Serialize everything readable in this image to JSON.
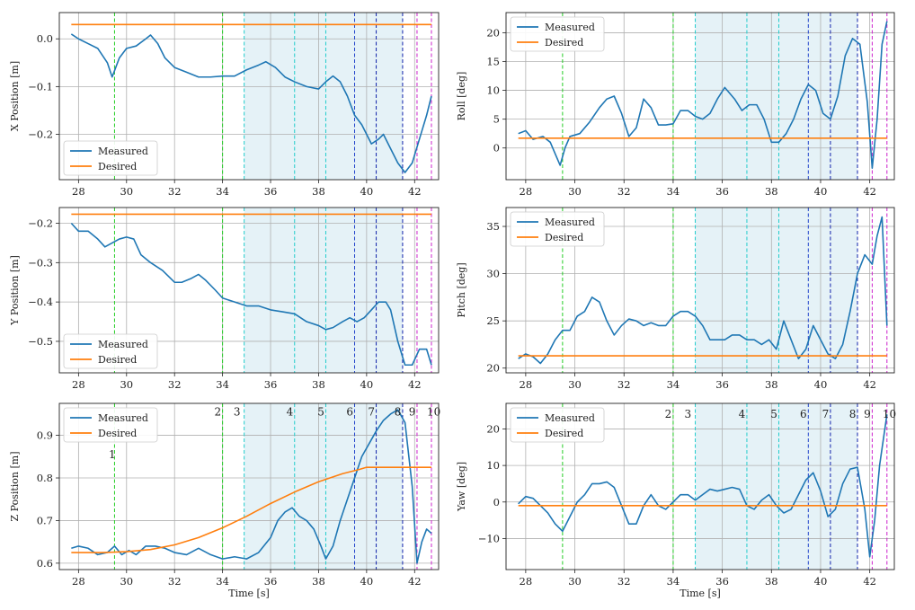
{
  "style": {
    "measured_color": "#1f77b4",
    "desired_color": "#ff7f0e",
    "shade_color": "#add8e6",
    "grid_color": "#b0b0b0"
  },
  "vlines": [
    {
      "x": 29.5,
      "color": "#22cc22"
    },
    {
      "x": 34.0,
      "color": "#22cc22"
    },
    {
      "x": 34.9,
      "color": "#22cccc"
    },
    {
      "x": 37.0,
      "color": "#22cccc"
    },
    {
      "x": 38.3,
      "color": "#22cccc"
    },
    {
      "x": 39.5,
      "color": "#2244cc"
    },
    {
      "x": 40.4,
      "color": "#1122aa"
    },
    {
      "x": 41.5,
      "color": "#1122aa"
    },
    {
      "x": 42.1,
      "color": "#cc22cc"
    },
    {
      "x": 42.7,
      "color": "#cc22cc"
    }
  ],
  "shade_range": [
    34.9,
    41.5
  ],
  "chart_data": [
    {
      "id": "x-position",
      "type": "line",
      "ylabel": "X Position [m]",
      "xlabel": "",
      "xlim": [
        27.2,
        43.0
      ],
      "ylim": [
        -0.295,
        0.055
      ],
      "xticks": [
        28,
        30,
        32,
        34,
        36,
        38,
        40,
        42
      ],
      "yticks": [
        -0.2,
        -0.1,
        0.0
      ],
      "ytick_labels": [
        "−0.2",
        "−0.1",
        "0.0"
      ],
      "legend": {
        "position": "lower-left",
        "entries": [
          "Measured",
          "Desired"
        ]
      },
      "series": [
        {
          "name": "Measured",
          "x": [
            27.7,
            28.0,
            28.4,
            28.8,
            29.2,
            29.4,
            29.7,
            30.0,
            30.4,
            30.8,
            31.0,
            31.3,
            31.6,
            32.0,
            32.5,
            33.0,
            33.5,
            34.0,
            34.5,
            35.0,
            35.5,
            35.8,
            36.2,
            36.6,
            37.0,
            37.5,
            38.0,
            38.3,
            38.6,
            38.9,
            39.2,
            39.5,
            39.8,
            40.2,
            40.5,
            40.7,
            41.0,
            41.3,
            41.6,
            41.9,
            42.2,
            42.5,
            42.7
          ],
          "y": [
            0.01,
            0.0,
            -0.01,
            -0.02,
            -0.05,
            -0.08,
            -0.04,
            -0.02,
            -0.015,
            0.0,
            0.008,
            -0.01,
            -0.04,
            -0.06,
            -0.07,
            -0.08,
            -0.08,
            -0.078,
            -0.078,
            -0.065,
            -0.055,
            -0.048,
            -0.06,
            -0.08,
            -0.09,
            -0.1,
            -0.105,
            -0.09,
            -0.078,
            -0.09,
            -0.12,
            -0.16,
            -0.18,
            -0.22,
            -0.21,
            -0.2,
            -0.23,
            -0.26,
            -0.28,
            -0.26,
            -0.21,
            -0.16,
            -0.12
          ]
        },
        {
          "name": "Desired",
          "x": [
            27.7,
            42.7
          ],
          "y": [
            0.03,
            0.03
          ]
        }
      ]
    },
    {
      "id": "roll",
      "type": "line",
      "ylabel": "Roll [deg]",
      "xlabel": "",
      "xlim": [
        27.2,
        43.0
      ],
      "ylim": [
        -5.5,
        23.5
      ],
      "xticks": [
        28,
        30,
        32,
        34,
        36,
        38,
        40,
        42
      ],
      "yticks": [
        0,
        5,
        10,
        15,
        20
      ],
      "ytick_labels": [
        "0",
        "5",
        "10",
        "15",
        "20"
      ],
      "legend": {
        "position": "upper-left",
        "entries": [
          "Measured",
          "Desired"
        ]
      },
      "series": [
        {
          "name": "Measured",
          "x": [
            27.7,
            28.0,
            28.3,
            28.7,
            29.0,
            29.2,
            29.4,
            29.6,
            29.8,
            30.2,
            30.6,
            31.0,
            31.3,
            31.6,
            31.9,
            32.2,
            32.5,
            32.8,
            33.1,
            33.4,
            33.7,
            34.0,
            34.3,
            34.6,
            34.9,
            35.2,
            35.5,
            35.8,
            36.1,
            36.5,
            36.8,
            37.1,
            37.4,
            37.7,
            38.0,
            38.3,
            38.6,
            38.9,
            39.2,
            39.5,
            39.8,
            40.1,
            40.4,
            40.7,
            41.0,
            41.3,
            41.6,
            41.9,
            42.1,
            42.3,
            42.5,
            42.7
          ],
          "y": [
            2.5,
            3.0,
            1.5,
            2.0,
            1.0,
            -1.0,
            -3.0,
            0.0,
            2.0,
            2.5,
            4.5,
            7.0,
            8.5,
            9.0,
            6.0,
            2.0,
            3.5,
            8.5,
            7.0,
            4.0,
            4.0,
            4.2,
            6.5,
            6.5,
            5.5,
            5.0,
            6.0,
            8.5,
            10.5,
            8.5,
            6.5,
            7.5,
            7.5,
            5.0,
            1.0,
            1.0,
            2.5,
            5.0,
            8.5,
            11.0,
            10.0,
            6.0,
            5.0,
            9.0,
            16.0,
            19.0,
            18.0,
            8.0,
            -3.5,
            5.0,
            18.0,
            22.0
          ]
        },
        {
          "name": "Desired",
          "x": [
            27.7,
            42.7
          ],
          "y": [
            1.7,
            1.7
          ]
        }
      ]
    },
    {
      "id": "y-position",
      "type": "line",
      "ylabel": "Y Position [m]",
      "xlabel": "",
      "xlim": [
        27.2,
        43.0
      ],
      "ylim": [
        -0.58,
        -0.16
      ],
      "xticks": [
        28,
        30,
        32,
        34,
        36,
        38,
        40,
        42
      ],
      "yticks": [
        -0.5,
        -0.4,
        -0.3,
        -0.2
      ],
      "ytick_labels": [
        "−0.5",
        "−0.4",
        "−0.3",
        "−0.2"
      ],
      "legend": {
        "position": "lower-left",
        "entries": [
          "Measured",
          "Desired"
        ]
      },
      "series": [
        {
          "name": "Measured",
          "x": [
            27.7,
            28.0,
            28.4,
            28.8,
            29.1,
            29.4,
            29.7,
            30.0,
            30.3,
            30.6,
            31.0,
            31.5,
            32.0,
            32.3,
            32.7,
            33.0,
            33.3,
            33.7,
            34.0,
            34.5,
            35.0,
            35.5,
            36.0,
            36.5,
            37.0,
            37.5,
            38.0,
            38.3,
            38.6,
            39.0,
            39.3,
            39.6,
            39.9,
            40.2,
            40.5,
            40.8,
            41.0,
            41.3,
            41.6,
            41.9,
            42.2,
            42.5,
            42.7
          ],
          "y": [
            -0.2,
            -0.22,
            -0.22,
            -0.24,
            -0.26,
            -0.25,
            -0.24,
            -0.235,
            -0.24,
            -0.28,
            -0.3,
            -0.32,
            -0.35,
            -0.35,
            -0.34,
            -0.33,
            -0.345,
            -0.37,
            -0.39,
            -0.4,
            -0.41,
            -0.41,
            -0.42,
            -0.425,
            -0.43,
            -0.45,
            -0.46,
            -0.47,
            -0.465,
            -0.45,
            -0.44,
            -0.45,
            -0.44,
            -0.42,
            -0.4,
            -0.4,
            -0.42,
            -0.5,
            -0.56,
            -0.56,
            -0.52,
            -0.52,
            -0.56
          ]
        },
        {
          "name": "Desired",
          "x": [
            27.7,
            42.7
          ],
          "y": [
            -0.177,
            -0.177
          ]
        }
      ]
    },
    {
      "id": "pitch",
      "type": "line",
      "ylabel": "Pitch [deg]",
      "xlabel": "",
      "xlim": [
        27.2,
        43.0
      ],
      "ylim": [
        19.5,
        37.0
      ],
      "xticks": [
        28,
        30,
        32,
        34,
        36,
        38,
        40,
        42
      ],
      "yticks": [
        20,
        25,
        30,
        35
      ],
      "ytick_labels": [
        "20",
        "25",
        "30",
        "35"
      ],
      "legend": {
        "position": "upper-left",
        "entries": [
          "Measured",
          "Desired"
        ]
      },
      "series": [
        {
          "name": "Measured",
          "x": [
            27.7,
            28.0,
            28.3,
            28.6,
            28.9,
            29.2,
            29.5,
            29.8,
            30.1,
            30.4,
            30.7,
            31.0,
            31.3,
            31.6,
            31.9,
            32.2,
            32.5,
            32.8,
            33.1,
            33.4,
            33.7,
            34.0,
            34.3,
            34.6,
            34.9,
            35.2,
            35.5,
            35.8,
            36.1,
            36.4,
            36.7,
            37.0,
            37.3,
            37.6,
            37.9,
            38.2,
            38.5,
            38.8,
            39.1,
            39.4,
            39.7,
            40.0,
            40.3,
            40.6,
            40.9,
            41.2,
            41.5,
            41.8,
            42.1,
            42.3,
            42.5,
            42.7
          ],
          "y": [
            21.0,
            21.5,
            21.2,
            20.5,
            21.5,
            23.0,
            24.0,
            24.0,
            25.5,
            26.0,
            27.5,
            27.0,
            25.0,
            23.5,
            24.5,
            25.2,
            25.0,
            24.5,
            24.8,
            24.5,
            24.5,
            25.5,
            26.0,
            26.0,
            25.5,
            24.5,
            23.0,
            23.0,
            23.0,
            23.5,
            23.5,
            23.0,
            23.0,
            22.5,
            23.0,
            22.0,
            25.0,
            23.0,
            21.0,
            22.0,
            24.5,
            23.0,
            21.5,
            21.0,
            22.5,
            26.0,
            30.0,
            32.0,
            31.0,
            34.0,
            36.0,
            24.5
          ]
        },
        {
          "name": "Desired",
          "x": [
            27.7,
            42.7
          ],
          "y": [
            21.3,
            21.3
          ]
        }
      ]
    },
    {
      "id": "z-position",
      "type": "line",
      "ylabel": "Z Position [m]",
      "xlabel": "Time [s]",
      "xlim": [
        27.2,
        43.0
      ],
      "ylim": [
        0.585,
        0.975
      ],
      "xticks": [
        28,
        30,
        32,
        34,
        36,
        38,
        40,
        42
      ],
      "yticks": [
        0.6,
        0.7,
        0.8,
        0.9
      ],
      "ytick_labels": [
        "0.6",
        "0.7",
        "0.8",
        "0.9"
      ],
      "legend": {
        "position": "upper-left",
        "entries": [
          "Measured",
          "Desired"
        ]
      },
      "annotations": [
        {
          "label": "1",
          "x": 29.4,
          "y": 0.855
        },
        {
          "label": "2",
          "x": 33.8,
          "y": 0.955
        },
        {
          "label": "3",
          "x": 34.6,
          "y": 0.955
        },
        {
          "label": "4",
          "x": 36.8,
          "y": 0.955
        },
        {
          "label": "5",
          "x": 38.1,
          "y": 0.955
        },
        {
          "label": "6",
          "x": 39.3,
          "y": 0.955
        },
        {
          "label": "7",
          "x": 40.2,
          "y": 0.955
        },
        {
          "label": "8",
          "x": 41.3,
          "y": 0.955
        },
        {
          "label": "9",
          "x": 41.9,
          "y": 0.955
        },
        {
          "label": "10",
          "x": 42.8,
          "y": 0.955
        }
      ],
      "series": [
        {
          "name": "Measured",
          "x": [
            27.7,
            28.0,
            28.4,
            28.8,
            29.2,
            29.5,
            29.8,
            30.1,
            30.4,
            30.8,
            31.2,
            31.6,
            32.0,
            32.5,
            33.0,
            33.5,
            34.0,
            34.5,
            35.0,
            35.5,
            36.0,
            36.3,
            36.6,
            36.9,
            37.2,
            37.5,
            37.8,
            38.1,
            38.3,
            38.6,
            38.9,
            39.2,
            39.5,
            39.8,
            40.1,
            40.4,
            40.7,
            41.0,
            41.3,
            41.6,
            41.9,
            42.1,
            42.3,
            42.5,
            42.7
          ],
          "y": [
            0.635,
            0.64,
            0.635,
            0.62,
            0.625,
            0.64,
            0.62,
            0.63,
            0.62,
            0.64,
            0.64,
            0.635,
            0.625,
            0.62,
            0.635,
            0.62,
            0.61,
            0.615,
            0.61,
            0.625,
            0.66,
            0.7,
            0.72,
            0.73,
            0.71,
            0.7,
            0.68,
            0.64,
            0.61,
            0.64,
            0.7,
            0.75,
            0.8,
            0.85,
            0.88,
            0.91,
            0.935,
            0.95,
            0.96,
            0.93,
            0.78,
            0.6,
            0.65,
            0.68,
            0.67
          ]
        },
        {
          "name": "Desired",
          "x": [
            27.7,
            29.0,
            30.0,
            31.0,
            32.0,
            33.0,
            34.0,
            35.0,
            36.0,
            37.0,
            38.0,
            39.0,
            39.7,
            40.0,
            41.0,
            42.0,
            42.7
          ],
          "y": [
            0.625,
            0.625,
            0.627,
            0.632,
            0.643,
            0.66,
            0.683,
            0.71,
            0.74,
            0.767,
            0.791,
            0.81,
            0.82,
            0.825,
            0.825,
            0.825,
            0.825
          ]
        }
      ]
    },
    {
      "id": "yaw",
      "type": "line",
      "ylabel": "Yaw [deg]",
      "xlabel": "Time [s]",
      "xlim": [
        27.2,
        43.0
      ],
      "ylim": [
        -18.5,
        27.0
      ],
      "xticks": [
        28,
        30,
        32,
        34,
        36,
        38,
        40,
        42
      ],
      "yticks": [
        -10,
        0,
        10,
        20
      ],
      "ytick_labels": [
        "−10",
        "0",
        "10",
        "20"
      ],
      "legend": {
        "position": "upper-left",
        "entries": [
          "Measured",
          "Desired"
        ]
      },
      "annotations": [
        {
          "label": "2",
          "x": 33.8,
          "y": 24.0
        },
        {
          "label": "3",
          "x": 34.6,
          "y": 24.0
        },
        {
          "label": "4",
          "x": 36.8,
          "y": 24.0
        },
        {
          "label": "5",
          "x": 38.1,
          "y": 24.0
        },
        {
          "label": "6",
          "x": 39.3,
          "y": 24.0
        },
        {
          "label": "7",
          "x": 40.2,
          "y": 24.0
        },
        {
          "label": "8",
          "x": 41.3,
          "y": 24.0
        },
        {
          "label": "9",
          "x": 41.9,
          "y": 24.0
        },
        {
          "label": "10",
          "x": 42.8,
          "y": 24.0
        }
      ],
      "series": [
        {
          "name": "Measured",
          "x": [
            27.7,
            28.0,
            28.3,
            28.6,
            28.9,
            29.2,
            29.5,
            29.8,
            30.1,
            30.4,
            30.7,
            31.0,
            31.3,
            31.6,
            31.9,
            32.2,
            32.5,
            32.8,
            33.1,
            33.4,
            33.7,
            34.0,
            34.3,
            34.6,
            34.9,
            35.2,
            35.5,
            35.8,
            36.1,
            36.4,
            36.7,
            37.0,
            37.3,
            37.6,
            37.9,
            38.2,
            38.5,
            38.8,
            39.1,
            39.4,
            39.7,
            40.0,
            40.3,
            40.6,
            40.9,
            41.2,
            41.5,
            41.8,
            42.0,
            42.2,
            42.4,
            42.7
          ],
          "y": [
            -0.5,
            1.5,
            1.0,
            -1.0,
            -3.0,
            -6.0,
            -8.0,
            -4.0,
            0.0,
            2.0,
            5.0,
            5.0,
            5.5,
            4.0,
            -1.0,
            -6.0,
            -6.0,
            -1.0,
            2.0,
            -1.0,
            -2.0,
            0.0,
            2.0,
            2.0,
            0.5,
            2.0,
            3.5,
            3.0,
            3.5,
            4.0,
            3.5,
            -1.0,
            -2.0,
            0.5,
            2.0,
            -1.0,
            -3.0,
            -2.0,
            2.0,
            6.0,
            8.0,
            3.0,
            -4.0,
            -2.0,
            5.0,
            9.0,
            9.5,
            -2.0,
            -15.0,
            -5.0,
            10.0,
            24.0
          ]
        },
        {
          "name": "Desired",
          "x": [
            27.7,
            42.7
          ],
          "y": [
            -1.0,
            -1.0
          ]
        }
      ]
    }
  ]
}
